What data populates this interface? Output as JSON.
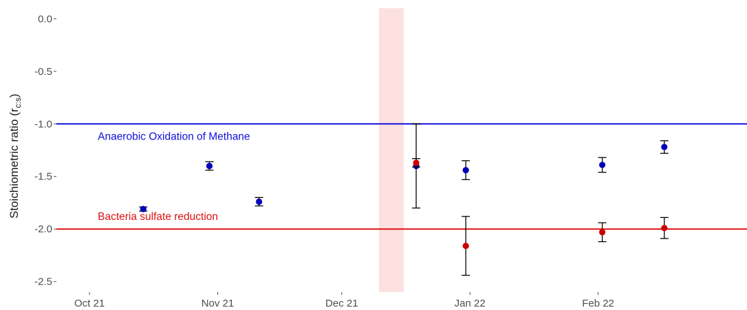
{
  "chart_data": {
    "type": "scatter",
    "title": "",
    "xlabel": "",
    "ylabel": "Stoichiometric ratio (r",
    "ylabel_subscript": "c:s",
    "ylabel_close": ")",
    "ylim": [
      -2.6,
      0.1
    ],
    "xlim": [
      "2021-09-23",
      "2022-03-09"
    ],
    "y_ticks": [
      0.0,
      -0.5,
      -1.0,
      -1.5,
      -2.0,
      -2.5
    ],
    "y_tick_labels": [
      "0.0",
      "-0.5",
      "-1.0",
      "-1.5",
      "-2.0",
      "-2.5"
    ],
    "x_ticks": [
      "2021-10-01",
      "2021-11-01",
      "2021-12-01",
      "2022-01-01",
      "2022-02-01"
    ],
    "x_tick_labels": [
      "Oct 21",
      "Nov 21",
      "Dec 21",
      "Jan 22",
      "Feb 22"
    ],
    "grid": false,
    "highlight_band": {
      "start": "2021-12-10",
      "end": "2021-12-16",
      "color": "#fde0e0"
    },
    "reference_lines": [
      {
        "y": -1.0,
        "label": "Anaerobic Oxidation of Methane",
        "color": "#1010dd",
        "label_x": "2021-10-03",
        "label_y": -1.12
      },
      {
        "y": -2.0,
        "label": "Bacteria sulfate reduction",
        "color": "#dd1111",
        "label_x": "2021-10-03",
        "label_y": -1.88
      }
    ],
    "series": [
      {
        "color": "#0000bb",
        "points": [
          {
            "x": "2021-10-14",
            "y": -1.81,
            "err": 0.02
          },
          {
            "x": "2021-10-30",
            "y": -1.4,
            "err": 0.04
          },
          {
            "x": "2021-11-11",
            "y": -1.74,
            "err": 0.04
          },
          {
            "x": "2021-12-19",
            "y": -1.4,
            "err": 0.4
          },
          {
            "x": "2021-12-31",
            "y": -1.44,
            "err": 0.09
          },
          {
            "x": "2022-02-02",
            "y": -1.39,
            "err": 0.07
          },
          {
            "x": "2022-02-17",
            "y": -1.22,
            "err": 0.06
          }
        ]
      },
      {
        "color": "#cc0000",
        "points": [
          {
            "x": "2021-12-19",
            "y": -1.37,
            "err": 0.04
          },
          {
            "x": "2021-12-31",
            "y": -2.16,
            "err": 0.28
          },
          {
            "x": "2022-02-02",
            "y": -2.03,
            "err": 0.09
          },
          {
            "x": "2022-02-17",
            "y": -1.99,
            "err": 0.1
          }
        ]
      }
    ]
  }
}
